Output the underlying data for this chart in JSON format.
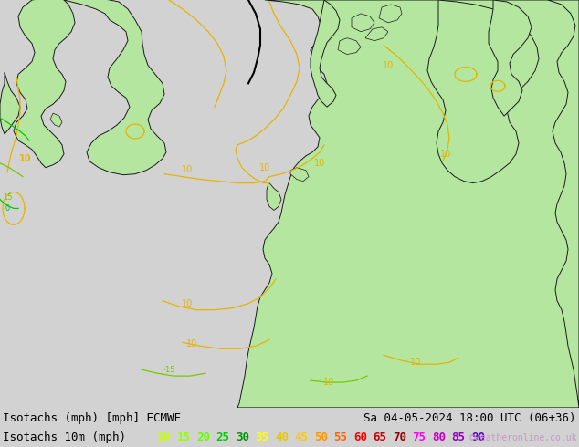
{
  "title_left": "Isotachs (mph) [mph] ECMWF",
  "title_right": "Sa 04-05-2024 18:00 UTC (06+36)",
  "legend_title": "Isotachs 10m (mph)",
  "copyright": "©weatheronline.co.uk",
  "legend_values": [
    10,
    15,
    20,
    25,
    30,
    35,
    40,
    45,
    50,
    55,
    60,
    65,
    70,
    75,
    80,
    85,
    90
  ],
  "legend_colors": [
    "#c8ff00",
    "#96ff00",
    "#64ff00",
    "#00cd00",
    "#009600",
    "#ffff00",
    "#e6c800",
    "#ffc800",
    "#ff9600",
    "#ff6400",
    "#ff0000",
    "#c80000",
    "#960000",
    "#ff00ff",
    "#c800c8",
    "#9600c8",
    "#6400c8"
  ],
  "land_color": "#b4e6a0",
  "sea_color": "#d2d2d2",
  "contour_yellow": "#e6b400",
  "contour_green": "#78c800",
  "contour_green2": "#00c800",
  "coast_color": "#1a1a1a",
  "title_fontsize": 9,
  "fig_width": 6.34,
  "fig_height": 4.9,
  "dpi": 100
}
